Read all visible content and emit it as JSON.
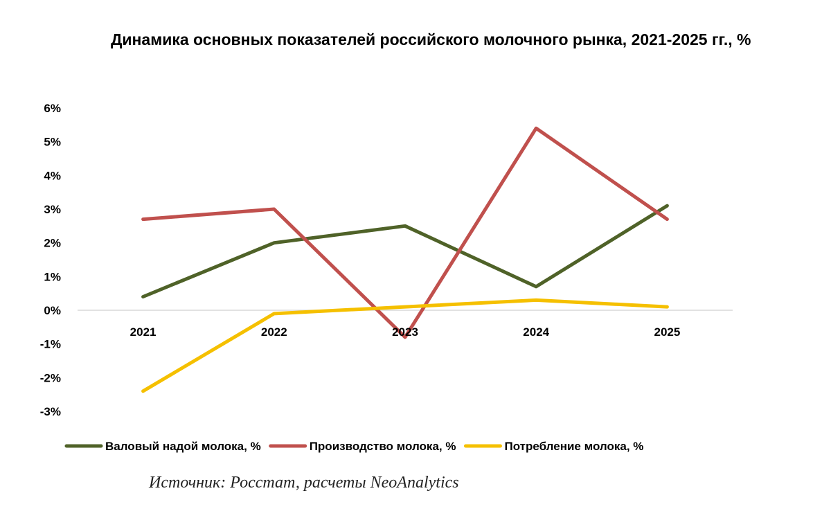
{
  "chart_data": {
    "type": "line",
    "title": "Динамика основных показателей российского молочного рынка, 2021-2025 гг., %",
    "categories": [
      "2021",
      "2022",
      "2023",
      "2024",
      "2025"
    ],
    "y_ticks": [
      "6%",
      "5%",
      "4%",
      "3%",
      "2%",
      "1%",
      "0%",
      "-1%",
      "-2%",
      "-3%"
    ],
    "ylim": [
      -3,
      6
    ],
    "series": [
      {
        "name": "Валовый надой молока, %",
        "color": "#4f6228",
        "values": [
          0.4,
          2.0,
          2.5,
          0.7,
          3.1
        ]
      },
      {
        "name": "Производство молока, %",
        "color": "#c0504d",
        "values": [
          2.7,
          3.0,
          -0.8,
          5.4,
          2.7
        ]
      },
      {
        "name": "Потребление молока, %",
        "color": "#f5c000",
        "values": [
          -2.4,
          -0.1,
          0.1,
          0.3,
          0.1
        ]
      }
    ],
    "legend_position": "bottom",
    "grid": false
  },
  "source_text": "Источник: Росстат, расчеты NeoAnalytics"
}
